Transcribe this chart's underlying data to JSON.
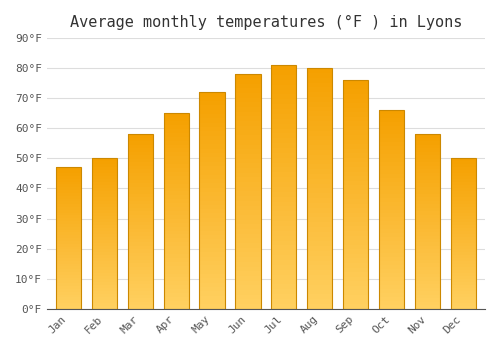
{
  "title": "Average monthly temperatures (°F ) in Lyons",
  "months": [
    "Jan",
    "Feb",
    "Mar",
    "Apr",
    "May",
    "Jun",
    "Jul",
    "Aug",
    "Sep",
    "Oct",
    "Nov",
    "Dec"
  ],
  "values": [
    47,
    50,
    58,
    65,
    72,
    78,
    81,
    80,
    76,
    66,
    58,
    50
  ],
  "bar_color_top": "#F5A000",
  "bar_color_bottom": "#FFD060",
  "ylim": [
    0,
    90
  ],
  "yticks": [
    0,
    10,
    20,
    30,
    40,
    50,
    60,
    70,
    80,
    90
  ],
  "ytick_labels": [
    "0°F",
    "10°F",
    "20°F",
    "30°F",
    "40°F",
    "50°F",
    "60°F",
    "70°F",
    "80°F",
    "90°F"
  ],
  "background_color": "#ffffff",
  "grid_color": "#dddddd",
  "bar_edge_color": "#cc8800",
  "title_fontsize": 11,
  "tick_fontsize": 8,
  "font_family": "monospace"
}
